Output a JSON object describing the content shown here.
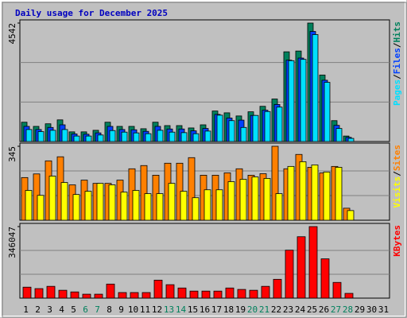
{
  "title": "Daily usage for December 2025",
  "legend_separator": "/",
  "chart_data": [
    {
      "type": "bar",
      "ylim": [
        0,
        4542
      ],
      "yticks": [
        4542
      ],
      "series": [
        {
          "name": "Hits",
          "color": "#00805c",
          "values": [
            740,
            580,
            680,
            830,
            370,
            370,
            430,
            740,
            580,
            580,
            490,
            740,
            610,
            610,
            520,
            640,
            1170,
            1100,
            980,
            1140,
            1350,
            1630,
            3440,
            3470,
            4542,
            2550,
            800,
            210,
            null,
            null,
            null
          ]
        },
        {
          "name": "Files",
          "color": "#0040ff",
          "values": [
            580,
            460,
            540,
            640,
            290,
            280,
            330,
            580,
            460,
            450,
            390,
            580,
            480,
            480,
            410,
            500,
            1040,
            900,
            820,
            1000,
            1200,
            1420,
            3120,
            3200,
            4220,
            2350,
            620,
            160,
            null,
            null,
            null
          ]
        },
        {
          "name": "Pages",
          "color": "#00e0ff",
          "values": [
            460,
            380,
            430,
            460,
            210,
            210,
            250,
            420,
            360,
            330,
            300,
            430,
            360,
            340,
            300,
            400,
            1010,
            800,
            540,
            1000,
            1150,
            1320,
            3100,
            3150,
            4100,
            2270,
            500,
            120,
            null,
            null,
            null
          ]
        }
      ]
    },
    {
      "type": "bar",
      "ylim": [
        0,
        345
      ],
      "yticks": [
        345
      ],
      "series": [
        {
          "name": "Sites",
          "color": "#ff8000",
          "values": [
            199,
            216,
            277,
            296,
            165,
            187,
            172,
            172,
            187,
            240,
            255,
            210,
            266,
            266,
            292,
            210,
            210,
            221,
            240,
            210,
            217,
            345,
            240,
            307,
            247,
            221,
            251,
            56,
            null,
            null,
            null
          ]
        },
        {
          "name": "Visits",
          "color": "#ffff00",
          "values": [
            139,
            116,
            206,
            176,
            120,
            135,
            172,
            165,
            131,
            139,
            124,
            124,
            172,
            135,
            105,
            142,
            142,
            180,
            191,
            202,
            195,
            124,
            251,
            273,
            258,
            225,
            247,
            45,
            null,
            null,
            null
          ]
        }
      ]
    },
    {
      "type": "bar",
      "ylim": [
        0,
        346047
      ],
      "yticks": [
        346047
      ],
      "categories": [
        "1",
        "2",
        "3",
        "4",
        "5",
        "6",
        "7",
        "8",
        "9",
        "10",
        "11",
        "12",
        "13",
        "14",
        "15",
        "16",
        "17",
        "18",
        "19",
        "20",
        "21",
        "22",
        "23",
        "24",
        "25",
        "26",
        "27",
        "28",
        "29",
        "30",
        "31"
      ],
      "category_colors": [
        "#000",
        "#000",
        "#000",
        "#000",
        "#000",
        "#00805c",
        "#00805c",
        "#000",
        "#000",
        "#000",
        "#000",
        "#000",
        "#00805c",
        "#00805c",
        "#000",
        "#000",
        "#000",
        "#000",
        "#000",
        "#00805c",
        "#00805c",
        "#000",
        "#000",
        "#000",
        "#000",
        "#000",
        "#00805c",
        "#00805c",
        "#000",
        "#000",
        "#000"
      ],
      "series": [
        {
          "name": "KBytes",
          "color": "#ff0000",
          "values": [
            53000,
            46000,
            57000,
            38000,
            30000,
            19000,
            19000,
            68000,
            27000,
            27000,
            27000,
            87000,
            65000,
            49000,
            34000,
            34000,
            34000,
            49000,
            42000,
            38000,
            57000,
            91000,
            232000,
            297000,
            346047,
            190000,
            76000,
            23000,
            null,
            null,
            null
          ]
        }
      ]
    }
  ]
}
